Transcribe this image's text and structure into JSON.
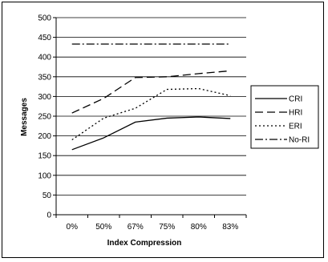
{
  "chart_data": {
    "type": "line",
    "title": "",
    "xlabel": "Index Compression",
    "ylabel": "Messages",
    "categories": [
      "0%",
      "50%",
      "67%",
      "75%",
      "80%",
      "83%"
    ],
    "ylim": [
      0,
      500
    ],
    "yticks": [
      0,
      50,
      100,
      150,
      200,
      250,
      300,
      350,
      400,
      450,
      500
    ],
    "grid": "horizontal",
    "legend_position": "right",
    "series": [
      {
        "name": "CRI",
        "style": "solid",
        "color": "#000000",
        "values": [
          165,
          195,
          235,
          245,
          248,
          244
        ]
      },
      {
        "name": "HRI",
        "style": "dashed",
        "color": "#000000",
        "values": [
          258,
          295,
          348,
          350,
          358,
          365
        ]
      },
      {
        "name": "ERI",
        "style": "dotted",
        "color": "#000000",
        "values": [
          190,
          245,
          270,
          318,
          320,
          302
        ]
      },
      {
        "name": "No-RI",
        "style": "dash-dot",
        "color": "#000000",
        "values": [
          433,
          433,
          433,
          433,
          433,
          433
        ]
      }
    ]
  }
}
